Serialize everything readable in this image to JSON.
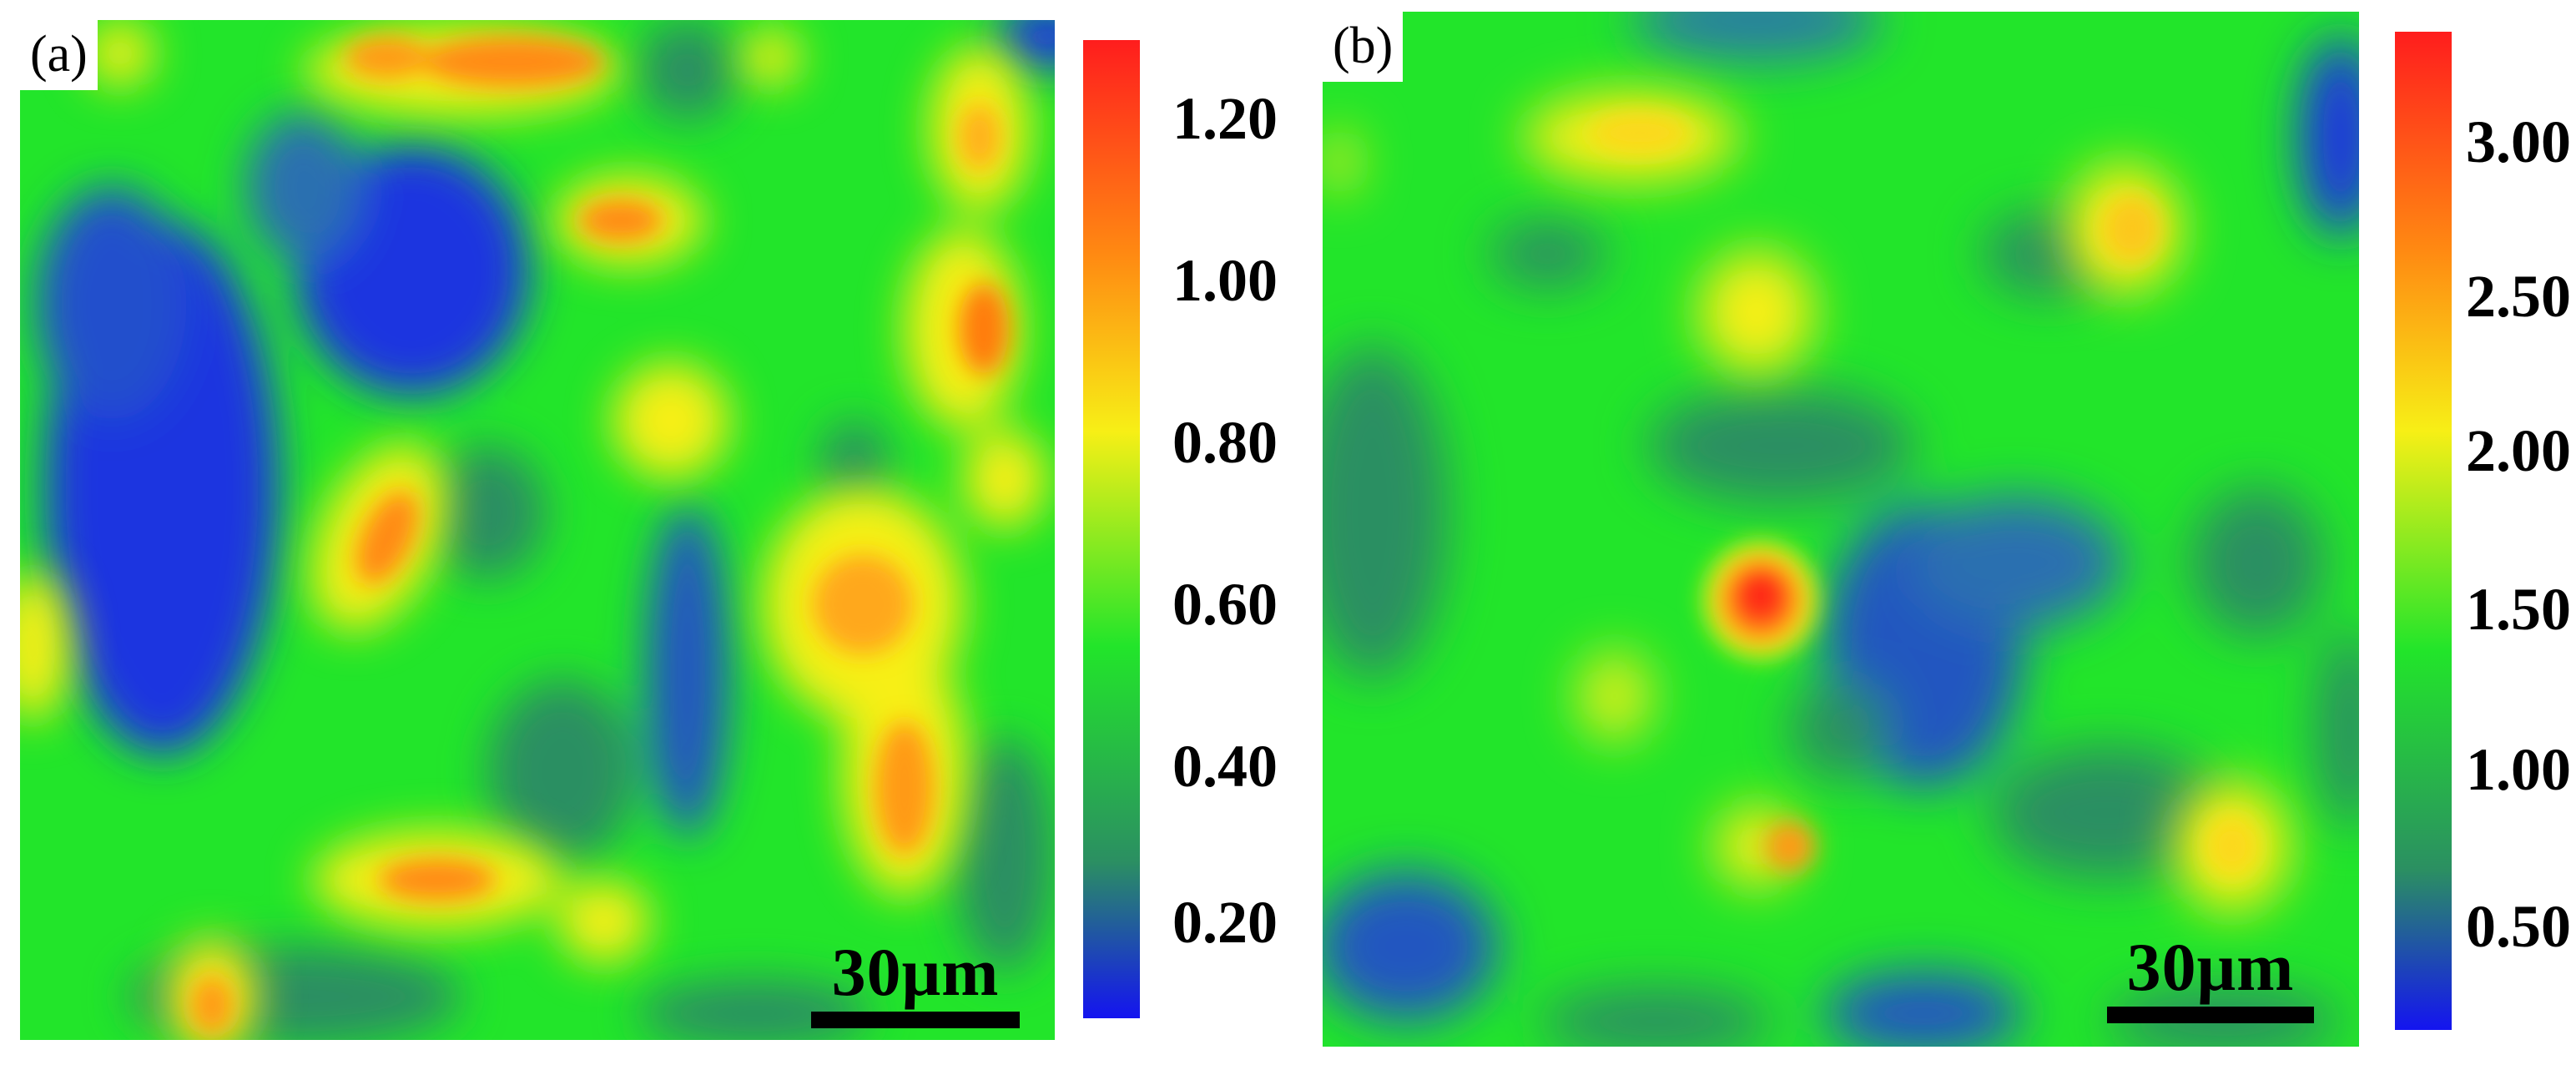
{
  "figure": {
    "panels": [
      {
        "id": "a",
        "label": "(a)",
        "scale_bar_text": "30μm",
        "colorbar": {
          "ticks": [
            "1.20",
            "1.00",
            "0.80",
            "0.60",
            "0.40",
            "0.20"
          ],
          "colors": [
            "#ff1d1d",
            "#ff8a12",
            "#f7ef16",
            "#22e52a",
            "#2b8f62",
            "#1414f0"
          ]
        }
      },
      {
        "id": "b",
        "label": "(b)",
        "scale_bar_text": "30μm",
        "colorbar": {
          "ticks": [
            "3.00",
            "2.50",
            "2.00",
            "1.50",
            "1.00",
            "0.50"
          ],
          "colors": [
            "#ff1d1d",
            "#ff8a12",
            "#f7ef16",
            "#22e52a",
            "#2b8f62",
            "#1414f0"
          ]
        }
      }
    ]
  }
}
